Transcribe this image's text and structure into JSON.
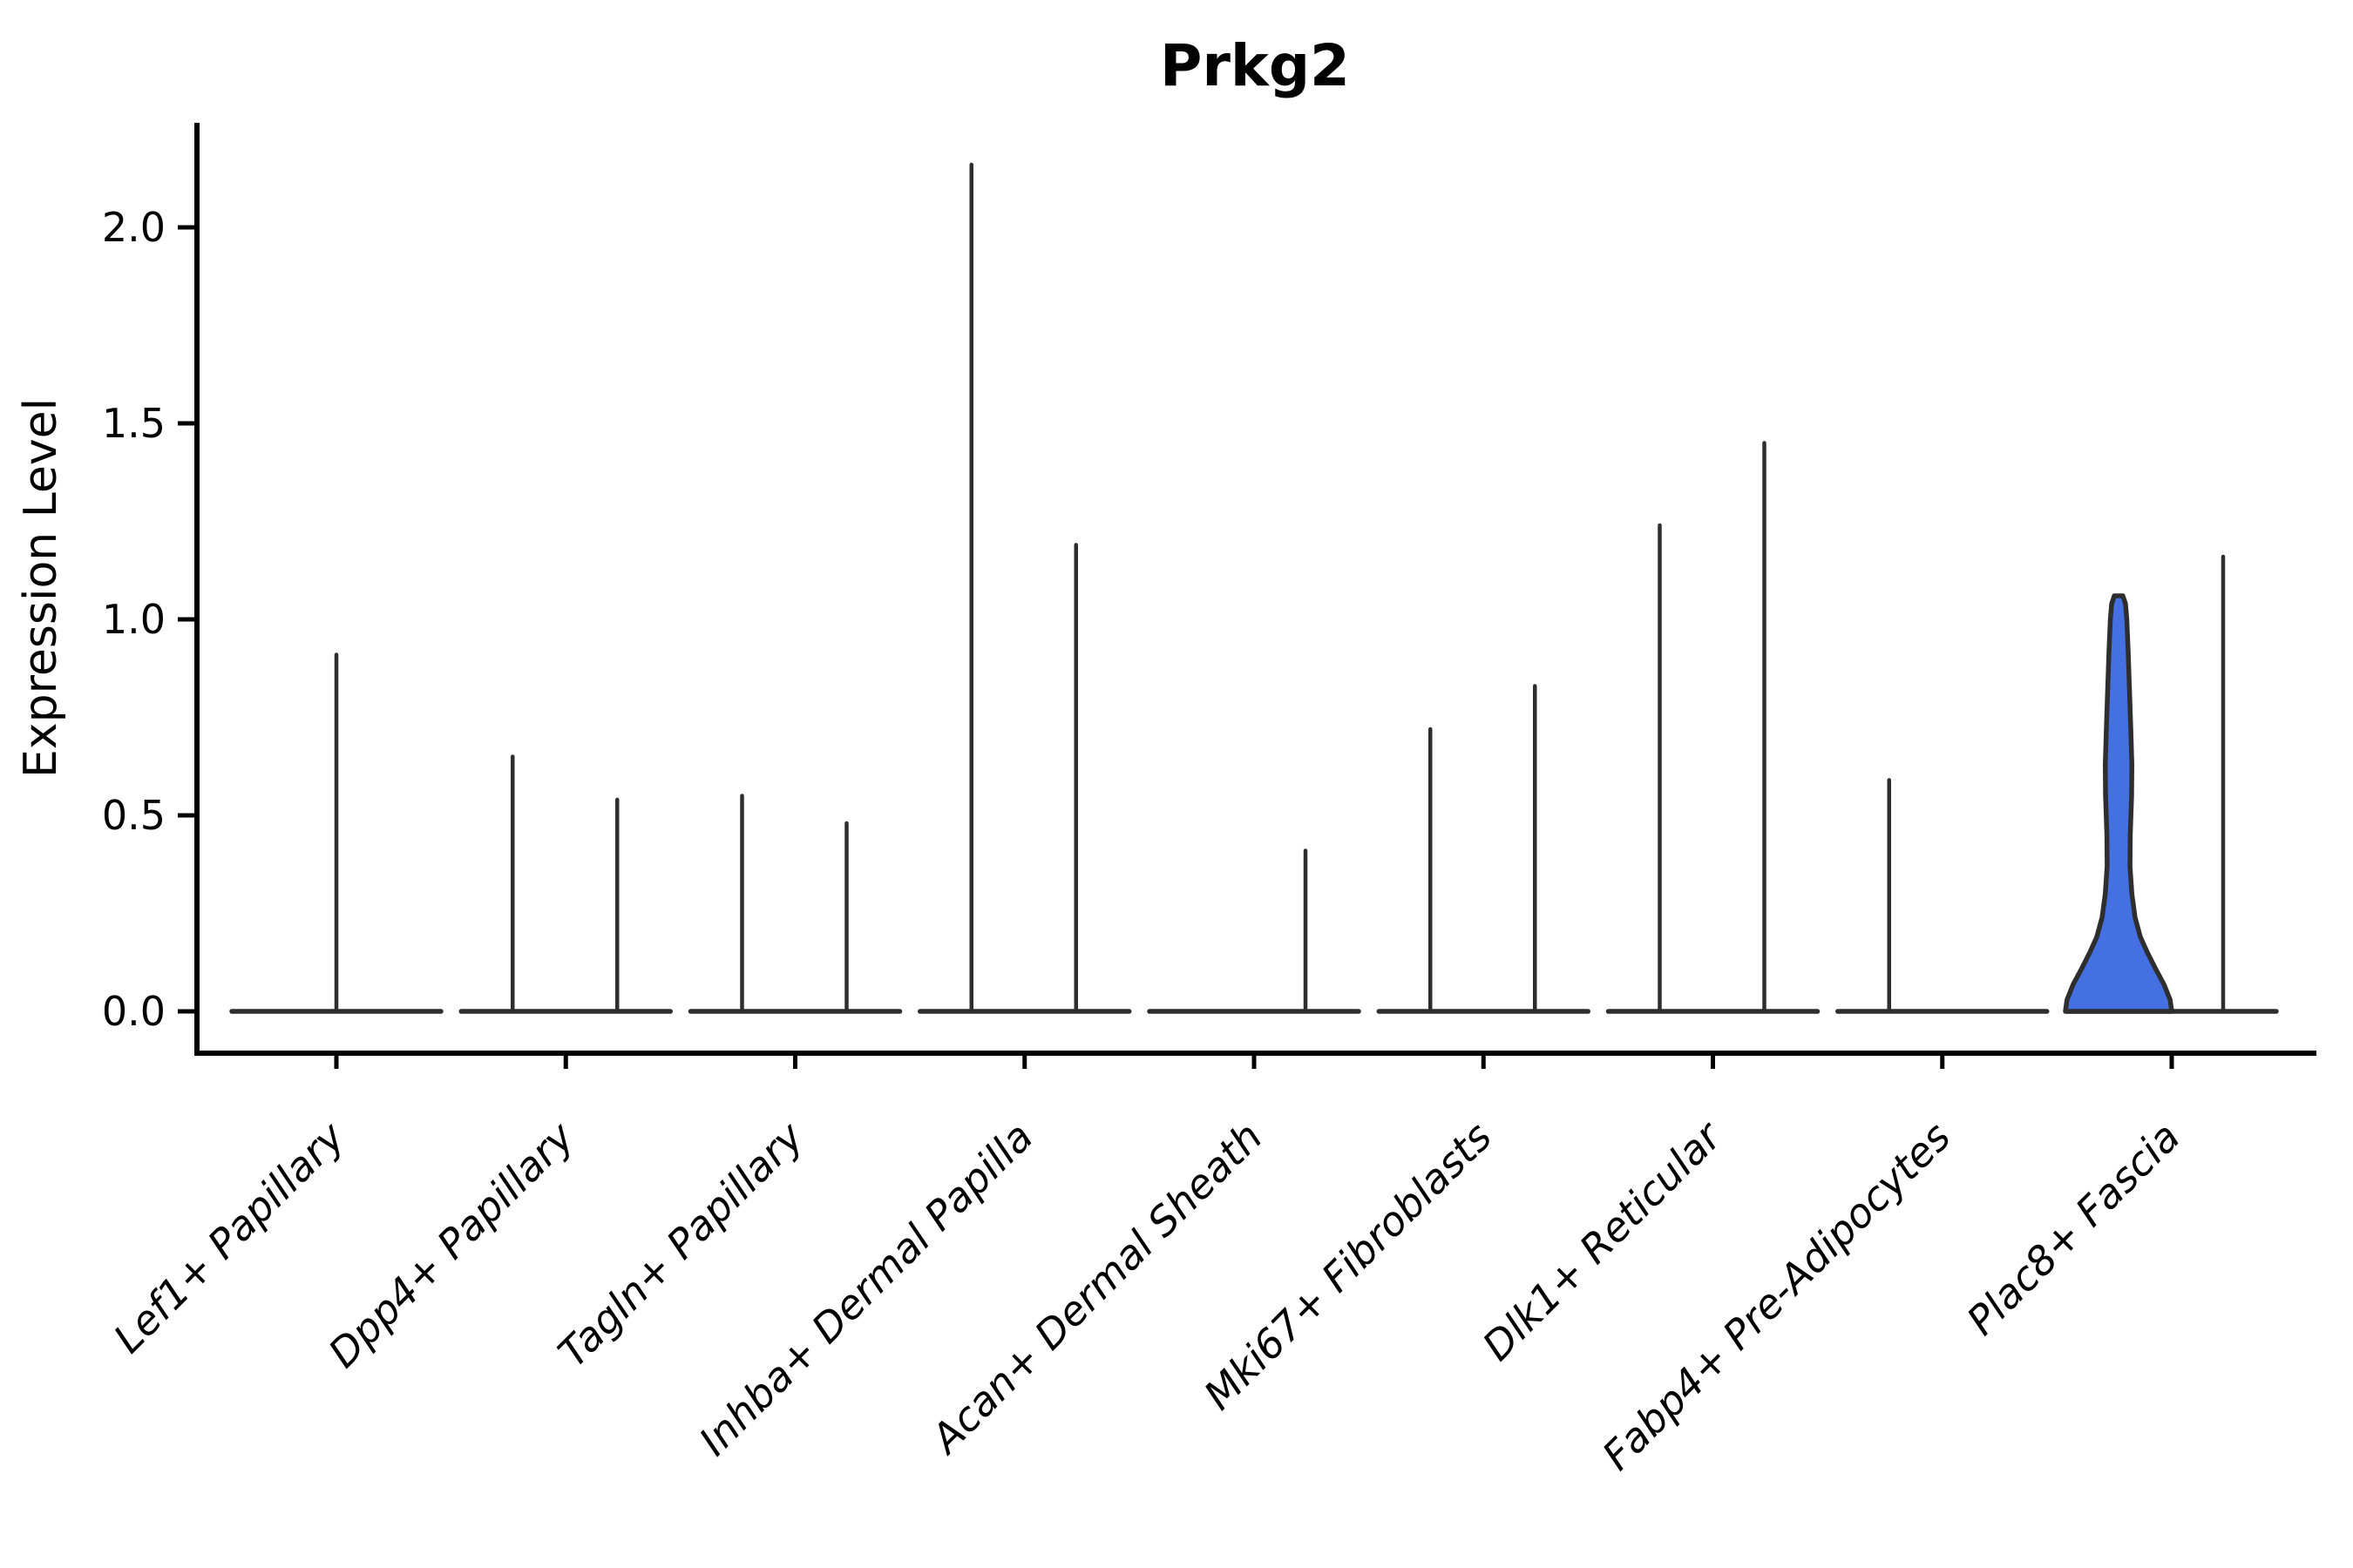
{
  "chart_data": {
    "type": "violin",
    "title": "Prkg2",
    "ylabel": "Expression Level",
    "xlabel": "",
    "yticks": {
      "values": [
        0.0,
        0.5,
        1.0,
        1.5,
        2.0
      ],
      "labels": [
        "0.0",
        "0.5",
        "1.0",
        "1.5",
        "2.0"
      ]
    },
    "ylim": [
      -0.105,
      2.27
    ],
    "grid": false,
    "legend": "none",
    "categories": [
      "Lef1+ Papillary",
      "Dpp4+ Papillary",
      "Tagln+ Papillary",
      "Inhba+ Dermal Papilla",
      "Acan+ Dermal Sheath",
      "Mki67+ Fibroblasts",
      "Dlk1+ Reticular",
      "Fabp4+ Pre-Adipocytes",
      "Plac8+ Fascia"
    ],
    "series_note": "two violin slots per category; most violins collapse to a thin spike from 0 to the max expression value; only Plac8+ Fascia left violin has visible density (filled blue)",
    "violins": [
      {
        "category_index": 0,
        "slot": "center",
        "max": 0.91,
        "style": "spike"
      },
      {
        "category_index": 1,
        "slot": "left",
        "max": 0.65,
        "style": "spike"
      },
      {
        "category_index": 1,
        "slot": "right",
        "max": 0.54,
        "style": "spike"
      },
      {
        "category_index": 2,
        "slot": "left",
        "max": 0.55,
        "style": "spike"
      },
      {
        "category_index": 2,
        "slot": "right",
        "max": 0.48,
        "style": "spike"
      },
      {
        "category_index": 3,
        "slot": "left",
        "max": 2.16,
        "style": "spike"
      },
      {
        "category_index": 3,
        "slot": "right",
        "max": 1.19,
        "style": "spike"
      },
      {
        "category_index": 4,
        "slot": "right",
        "max": 0.41,
        "style": "spike"
      },
      {
        "category_index": 5,
        "slot": "left",
        "max": 0.72,
        "style": "spike"
      },
      {
        "category_index": 5,
        "slot": "right",
        "max": 0.83,
        "style": "spike"
      },
      {
        "category_index": 6,
        "slot": "left",
        "max": 1.24,
        "style": "spike"
      },
      {
        "category_index": 6,
        "slot": "right",
        "max": 1.45,
        "style": "spike"
      },
      {
        "category_index": 7,
        "slot": "left",
        "max": 0.59,
        "style": "spike"
      },
      {
        "category_index": 8,
        "slot": "left",
        "max": 1.06,
        "style": "violin"
      },
      {
        "category_index": 8,
        "slot": "right",
        "max": 1.16,
        "style": "spike"
      }
    ],
    "highlight_violin_profile": [
      [
        0.0,
        1.0
      ],
      [
        0.028,
        0.97
      ],
      [
        0.066,
        0.85
      ],
      [
        0.104,
        0.69
      ],
      [
        0.142,
        0.54
      ],
      [
        0.179,
        0.41
      ],
      [
        0.226,
        0.31
      ],
      [
        0.283,
        0.25
      ],
      [
        0.349,
        0.215
      ],
      [
        0.425,
        0.22
      ],
      [
        0.519,
        0.245
      ],
      [
        0.594,
        0.25
      ],
      [
        0.679,
        0.23
      ],
      [
        0.774,
        0.205
      ],
      [
        0.868,
        0.18
      ],
      [
        0.943,
        0.155
      ],
      [
        0.981,
        0.13
      ],
      [
        1.0,
        0.08
      ]
    ],
    "colors": {
      "violin_line": "#2e2e2e",
      "violin_fill": "#4470e2",
      "spine": "#000000",
      "text": "#000000",
      "background": "#ffffff"
    }
  }
}
